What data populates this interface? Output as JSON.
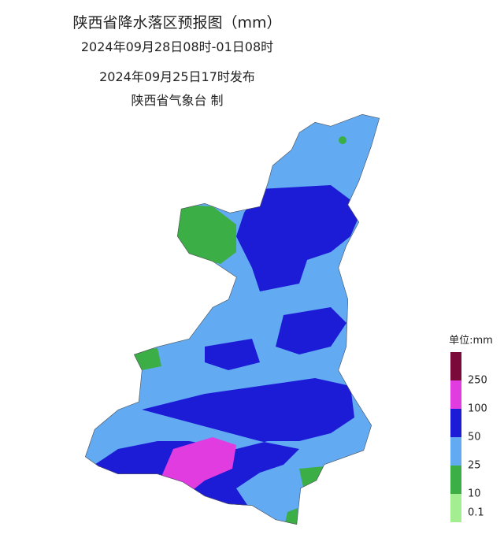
{
  "header": {
    "title": "陕西省降水落区预报图（mm）",
    "period": "2024年09月28日08时-01日08时",
    "issued": "2024年09月25日17时发布",
    "agency": "陕西省气象台 制"
  },
  "legend": {
    "unit": "单位:mm",
    "colors": [
      "#7a0a3a",
      "#e03ce0",
      "#1c1cd6",
      "#62aaf2",
      "#3cae46",
      "#a4ee92"
    ],
    "labels": [
      "250",
      "100",
      "50",
      "25",
      "10",
      "0.1"
    ]
  }
}
